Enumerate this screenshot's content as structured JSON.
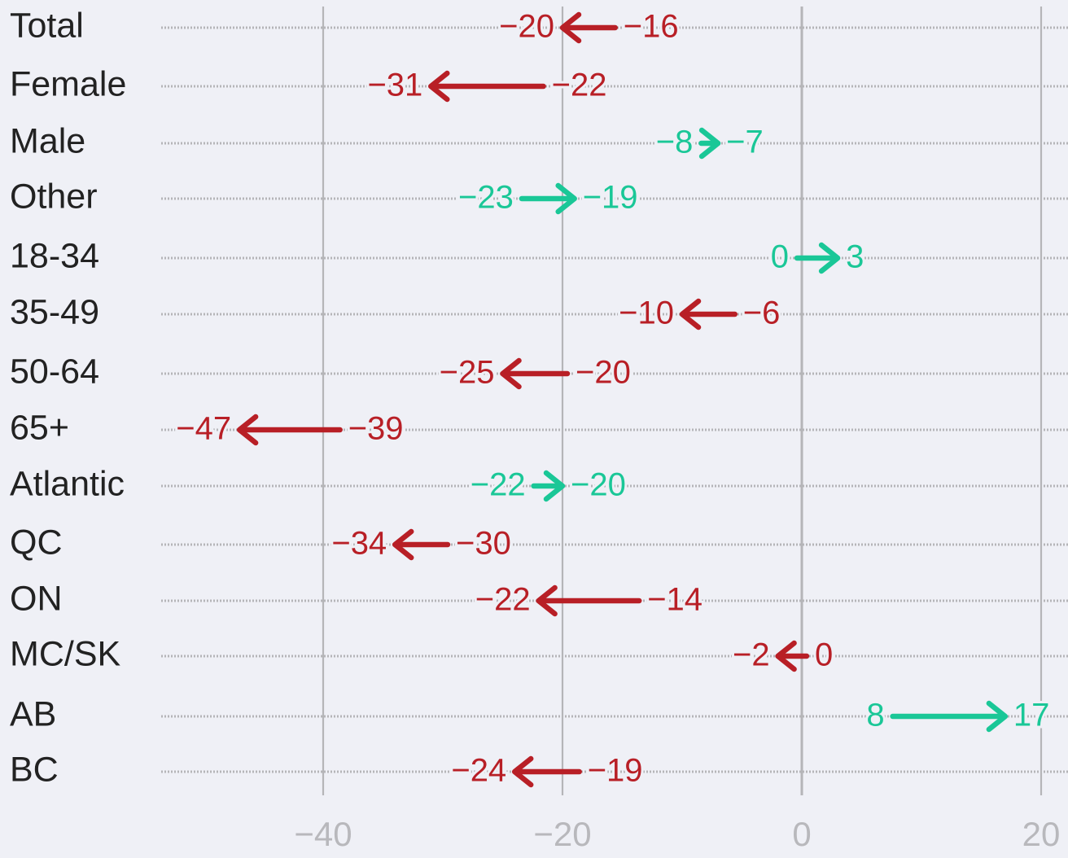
{
  "chart_data": {
    "type": "arrow",
    "title": "",
    "xlabel": "",
    "ylabel": "",
    "xlim": [
      -54,
      22
    ],
    "xticks": [
      -40,
      -20,
      0,
      20
    ],
    "xtick_labels": [
      "−40",
      "−20",
      "0",
      "20"
    ],
    "grid": true,
    "legend": "none",
    "colors": {
      "decrease": "#b81f26",
      "increase": "#1ac797",
      "axis": "#b5b5b8",
      "tick_text": "#b8b8bc",
      "label_text": "#222222",
      "row_line": "#b5b5b8"
    },
    "rows": [
      {
        "label": "Total",
        "from": -16,
        "to": -20,
        "from_label": "−16",
        "to_label": "−20"
      },
      {
        "label": "Female",
        "from": -22,
        "to": -31,
        "from_label": "−22",
        "to_label": "−31"
      },
      {
        "label": "Male",
        "from": -8,
        "to": -7,
        "from_label": "−8",
        "to_label": "−7"
      },
      {
        "label": "Other",
        "from": -23,
        "to": -19,
        "from_label": "−23",
        "to_label": "−19"
      },
      {
        "label": "18-34",
        "from": 0,
        "to": 3,
        "from_label": "0",
        "to_label": "3"
      },
      {
        "label": "35-49",
        "from": -6,
        "to": -10,
        "from_label": "−6",
        "to_label": "−10"
      },
      {
        "label": "50-64",
        "from": -20,
        "to": -25,
        "from_label": "−20",
        "to_label": "−25"
      },
      {
        "label": "65+",
        "from": -39,
        "to": -47,
        "from_label": "−39",
        "to_label": "−47"
      },
      {
        "label": "Atlantic",
        "from": -22,
        "to": -20,
        "from_label": "−22",
        "to_label": "−20"
      },
      {
        "label": "QC",
        "from": -30,
        "to": -34,
        "from_label": "−30",
        "to_label": "−34"
      },
      {
        "label": "ON",
        "from": -14,
        "to": -22,
        "from_label": "−14",
        "to_label": "−22"
      },
      {
        "label": "MC/SK",
        "from": 0,
        "to": -2,
        "from_label": "0",
        "to_label": "−2"
      },
      {
        "label": "AB",
        "from": 8,
        "to": 17,
        "from_label": "8",
        "to_label": "17"
      },
      {
        "label": "BC",
        "from": -19,
        "to": -24,
        "from_label": "−19",
        "to_label": "−24"
      }
    ]
  }
}
